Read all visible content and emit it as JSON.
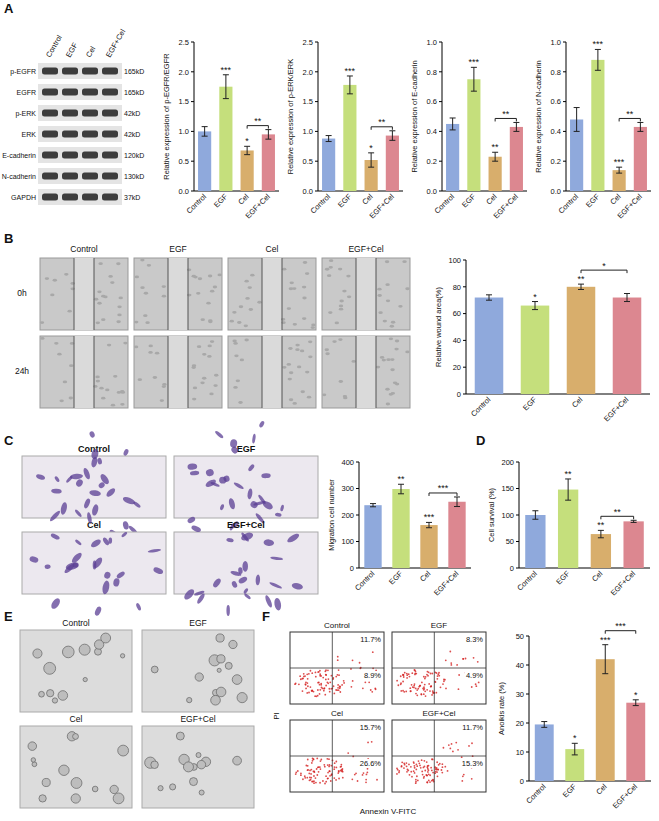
{
  "panel_labels": [
    "A",
    "B",
    "C",
    "D",
    "E",
    "F"
  ],
  "blot": {
    "lanes": [
      "Control",
      "EGF",
      "Cel",
      "EGF+Cel"
    ],
    "proteins": [
      "p-EGFR",
      "EGFR",
      "p-ERK",
      "ERK",
      "E-cadherin",
      "N-cadherin",
      "GAPDH"
    ],
    "sizes": [
      "165kD",
      "165kD",
      "42kD",
      "42kD",
      "120kD",
      "130kD",
      "37kD"
    ]
  },
  "wound": {
    "columns": [
      "Control",
      "EGF",
      "Cel",
      "EGF+Cel"
    ],
    "rows": [
      "0h",
      "24h"
    ]
  },
  "transwell": {
    "titles": [
      "Control",
      "EGF",
      "Cel",
      "EGF+Cel"
    ]
  },
  "spheres": {
    "titles": [
      "Control",
      "EGF",
      "Cel",
      "EGF+Cel"
    ]
  },
  "flow": {
    "titles": [
      "Control",
      "EGF",
      "Cel",
      "EGF+Cel"
    ],
    "x_label": "Annexin V-FITC",
    "y_label": "PI",
    "upper_right": [
      "11.7%",
      "8.3%",
      "15.7%",
      "11.7%"
    ],
    "lower_right": [
      "8.9%",
      "4.9%",
      "26.6%",
      "15.3%"
    ]
  },
  "chart_data": [
    {
      "type": "bar",
      "y_label": "Relative expression of p-EGFR/EGFR",
      "categories": [
        "Control",
        "EGF",
        "Cel",
        "EGF+Cel"
      ],
      "values": [
        1.0,
        1.75,
        0.68,
        0.95
      ],
      "errors": [
        0.08,
        0.2,
        0.07,
        0.08
      ],
      "colors": [
        "#8fa9dc",
        "#c5df7c",
        "#d8ae6c",
        "#dc8790"
      ],
      "ylim": [
        0,
        2.5
      ],
      "yticks": [
        {
          "value": 0,
          "label": "0.0"
        },
        0.5,
        {
          "value": 1,
          "label": "1.0"
        },
        1.5,
        {
          "value": 2,
          "label": "2.0"
        },
        2.5
      ],
      "significance": [
        null,
        "***",
        "*",
        null
      ],
      "brackets": [
        {
          "between": [
            "Cel",
            "EGF+Cel"
          ],
          "label": "**"
        }
      ]
    },
    {
      "type": "bar",
      "y_label": "Relative expression of p-ERK/ERK",
      "categories": [
        "Control",
        "EGF",
        "Cel",
        "EGF+Cel"
      ],
      "values": [
        0.88,
        1.78,
        0.52,
        0.93
      ],
      "errors": [
        0.05,
        0.15,
        0.12,
        0.08
      ],
      "colors": [
        "#8fa9dc",
        "#c5df7c",
        "#d8ae6c",
        "#dc8790"
      ],
      "ylim": [
        0,
        2.5
      ],
      "yticks": [
        {
          "value": 0,
          "label": "0.0"
        },
        0.5,
        {
          "value": 1,
          "label": "1.0"
        },
        1.5,
        {
          "value": 2,
          "label": "2.0"
        },
        2.5
      ],
      "significance": [
        null,
        "***",
        "*",
        null
      ],
      "brackets": [
        {
          "between": [
            "Cel",
            "EGF+Cel"
          ],
          "label": "**"
        }
      ]
    },
    {
      "type": "bar",
      "y_label": "Relative expression of E-cadherin",
      "categories": [
        "Control",
        "EGF",
        "Cel",
        "EGF+Cel"
      ],
      "values": [
        0.45,
        0.75,
        0.23,
        0.43
      ],
      "errors": [
        0.04,
        0.08,
        0.03,
        0.03
      ],
      "colors": [
        "#8fa9dc",
        "#c5df7c",
        "#d8ae6c",
        "#dc8790"
      ],
      "ylim": [
        0,
        1.0
      ],
      "yticks": [
        {
          "value": 0,
          "label": "0.0"
        },
        0.2,
        0.4,
        0.6,
        0.8,
        {
          "value": 1,
          "label": "1.0"
        }
      ],
      "significance": [
        null,
        "***",
        "**",
        null
      ],
      "brackets": [
        {
          "between": [
            "Cel",
            "EGF+Cel"
          ],
          "label": "**"
        }
      ]
    },
    {
      "type": "bar",
      "y_label": "Relative expression of N-cadherin",
      "categories": [
        "Control",
        "EGF",
        "Cel",
        "EGF+Cel"
      ],
      "values": [
        0.48,
        0.88,
        0.14,
        0.43
      ],
      "errors": [
        0.08,
        0.07,
        0.02,
        0.03
      ],
      "colors": [
        "#8fa9dc",
        "#c5df7c",
        "#d8ae6c",
        "#dc8790"
      ],
      "ylim": [
        0,
        1.0
      ],
      "yticks": [
        {
          "value": 0,
          "label": "0.0"
        },
        0.2,
        0.4,
        0.6,
        0.8,
        {
          "value": 1,
          "label": "1.0"
        }
      ],
      "significance": [
        null,
        "***",
        "***",
        null
      ],
      "brackets": [
        {
          "between": [
            "Cel",
            "EGF+Cel"
          ],
          "label": "**"
        }
      ]
    },
    {
      "type": "bar",
      "y_label": "Relative wound area(%)",
      "categories": [
        "Control",
        "EGF",
        "Cel",
        "EGF+Cel"
      ],
      "values": [
        72,
        66,
        80,
        72
      ],
      "errors": [
        2,
        3,
        2,
        3
      ],
      "colors": [
        "#8fa9dc",
        "#c5df7c",
        "#d8ae6c",
        "#dc8790"
      ],
      "ylim": [
        0,
        100
      ],
      "yticks": [
        0,
        20,
        40,
        60,
        80,
        100
      ],
      "significance": [
        null,
        "*",
        "**",
        null
      ],
      "brackets": [
        {
          "between": [
            "Cel",
            "EGF+Cel"
          ],
          "label": "*"
        }
      ]
    },
    {
      "type": "bar",
      "y_label": "Migration cell number",
      "categories": [
        "Control",
        "EGF",
        "Cel",
        "EGF+Cel"
      ],
      "values": [
        237,
        298,
        162,
        250
      ],
      "errors": [
        6,
        18,
        10,
        18
      ],
      "colors": [
        "#8fa9dc",
        "#c5df7c",
        "#d8ae6c",
        "#dc8790"
      ],
      "ylim": [
        0,
        400
      ],
      "yticks": [
        0,
        100,
        200,
        300,
        400
      ],
      "significance": [
        null,
        "**",
        "***",
        null
      ],
      "brackets": [
        {
          "between": [
            "Cel",
            "EGF+Cel"
          ],
          "label": "***"
        }
      ]
    },
    {
      "type": "bar",
      "y_label": "Cell survival (%)",
      "categories": [
        "Control",
        "EGF",
        "Cel",
        "EGF+Cel"
      ],
      "values": [
        100,
        148,
        64,
        88
      ],
      "errors": [
        8,
        20,
        7,
        2
      ],
      "colors": [
        "#8fa9dc",
        "#c5df7c",
        "#d8ae6c",
        "#dc8790"
      ],
      "ylim": [
        0,
        200
      ],
      "yticks": [
        0,
        50,
        100,
        150,
        200
      ],
      "significance": [
        null,
        "**",
        "**",
        null
      ],
      "brackets": [
        {
          "between": [
            "Cel",
            "EGF+Cel"
          ],
          "label": "**"
        }
      ]
    },
    {
      "type": "bar",
      "y_label": "Anoikis rate (%)",
      "categories": [
        "Control",
        "EGF",
        "Cel",
        "EGF+Cel"
      ],
      "values": [
        19.5,
        11,
        42,
        27
      ],
      "errors": [
        1,
        2,
        5,
        1
      ],
      "colors": [
        "#8fa9dc",
        "#c5df7c",
        "#d8ae6c",
        "#dc8790"
      ],
      "ylim": [
        0,
        50
      ],
      "yticks": [
        0,
        10,
        20,
        30,
        40,
        50
      ],
      "significance": [
        null,
        "*",
        "***",
        "*"
      ],
      "brackets": [
        {
          "between": [
            "Cel",
            "EGF+Cel"
          ],
          "label": "***"
        }
      ]
    }
  ]
}
